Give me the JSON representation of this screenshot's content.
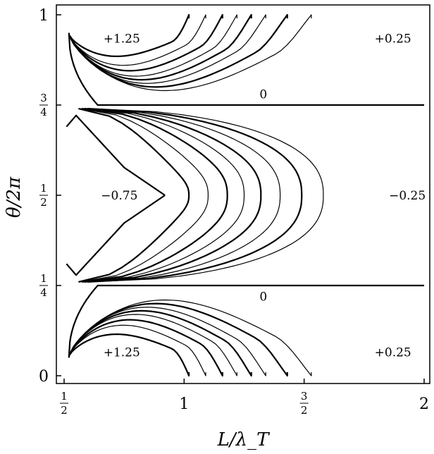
{
  "chart_data": {
    "type": "contour",
    "xlabel": "L/λ_T",
    "ylabel": "θ/2π",
    "xlim": [
      0.5,
      2
    ],
    "ylim": [
      0,
      1
    ],
    "x_ticks": [
      {
        "value": 0.5,
        "num": "1",
        "den": "2"
      },
      {
        "value": 1,
        "label": "1"
      },
      {
        "value": 1.5,
        "num": "3",
        "den": "2"
      },
      {
        "value": 2,
        "label": "2"
      }
    ],
    "y_ticks": [
      {
        "value": 0,
        "label": "0"
      },
      {
        "value": 0.25,
        "num": "1",
        "den": "4"
      },
      {
        "value": 0.5,
        "num": "1",
        "den": "2"
      },
      {
        "value": 0.75,
        "num": "3",
        "den": "4"
      },
      {
        "value": 1,
        "label": "1"
      }
    ],
    "annotations": [
      {
        "text": "+1.25",
        "x": 0.74,
        "y": 0.935
      },
      {
        "text": "+0.25",
        "x": 1.87,
        "y": 0.935
      },
      {
        "text": "0",
        "x": 1.33,
        "y": 0.78
      },
      {
        "text": "−0.75",
        "x": 0.73,
        "y": 0.5
      },
      {
        "text": "−0.25",
        "x": 1.93,
        "y": 0.5
      },
      {
        "text": "0",
        "x": 1.33,
        "y": 0.22
      },
      {
        "text": "+1.25",
        "x": 0.74,
        "y": 0.065
      },
      {
        "text": "+0.25",
        "x": 1.87,
        "y": 0.065
      }
    ],
    "contours": {
      "zero_level_lines": [
        {
          "level": 0,
          "theta": 0.75,
          "x_start": 0.64,
          "x_end": 2
        },
        {
          "level": 0,
          "theta": 0.25,
          "x_start": 0.64,
          "x_end": 2
        }
      ],
      "positive_arcs": [
        {
          "x_end": 1.02,
          "bottom": 0.885
        },
        {
          "x_end": 1.09,
          "bottom": 0.86
        },
        {
          "x_end": 1.16,
          "bottom": 0.845
        },
        {
          "x_end": 1.22,
          "bottom": 0.83
        },
        {
          "x_end": 1.28,
          "bottom": 0.82
        },
        {
          "x_end": 1.34,
          "bottom": 0.81
        },
        {
          "x_end": 1.43,
          "bottom": 0.8
        },
        {
          "x_end": 1.53,
          "bottom": 0.79
        }
      ],
      "negative_c_curves": [
        {
          "tip": 1.02,
          "amp": 0.105
        },
        {
          "tip": 1.1,
          "amp": 0.14
        },
        {
          "tip": 1.18,
          "amp": 0.165
        },
        {
          "tip": 1.25,
          "amp": 0.185
        },
        {
          "tip": 1.32,
          "amp": 0.2
        },
        {
          "tip": 1.4,
          "amp": 0.215
        },
        {
          "tip": 1.49,
          "amp": 0.228
        },
        {
          "tip": 1.58,
          "amp": 0.238
        }
      ],
      "inner_curve_theta_offset": 0.19
    }
  }
}
